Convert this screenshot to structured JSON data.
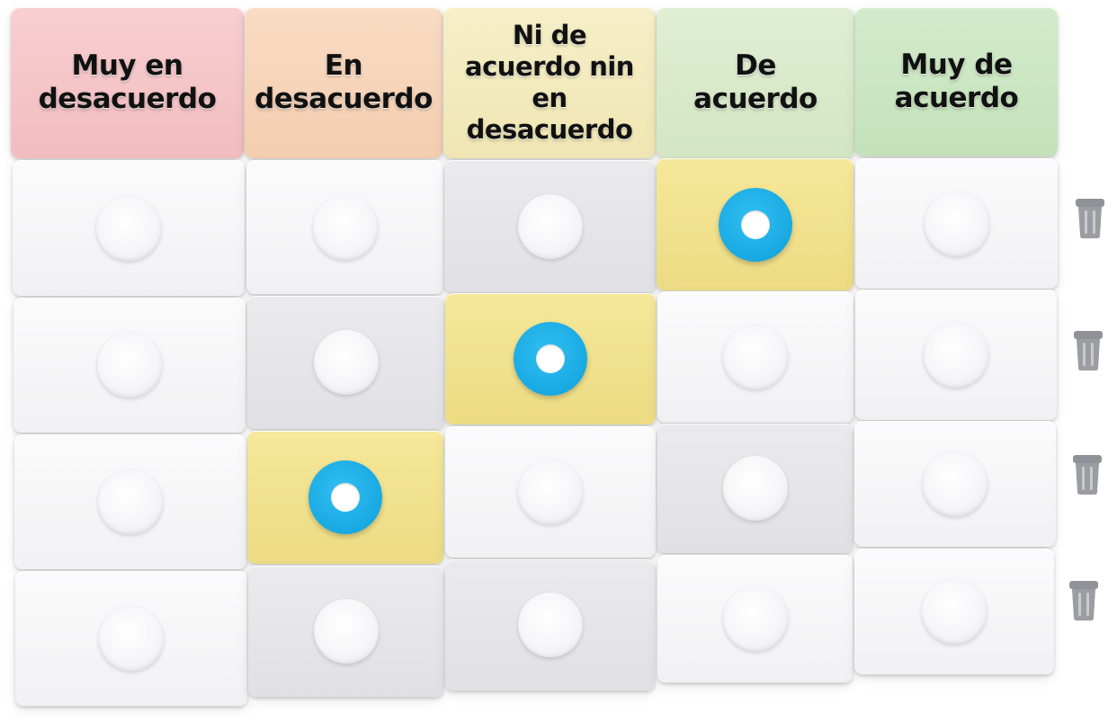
{
  "headers": [
    {
      "label": "Muy en\ndesacuerdo",
      "color": "#f5c4c6"
    },
    {
      "label": "En\ndesacuerdo",
      "color": "#f7d4b8"
    },
    {
      "label": "Ni de\nacuerdo nin\nen desacuerdo",
      "color": "#f4eab9"
    },
    {
      "label": "De\nacuerdo",
      "color": "#d8e9c8"
    },
    {
      "label": "Muy de\nacuerdo",
      "color": "#c9e6c1"
    }
  ],
  "rows": [
    {
      "selected_column": 3
    },
    {
      "selected_column": 2
    },
    {
      "selected_column": 1
    },
    {
      "selected_column": null
    }
  ],
  "colors": {
    "selected_cell": "#f2e28e",
    "radio_accent": "#1aa8e0",
    "trash_icon": "#8c8f94"
  },
  "icons": {
    "row_action": "trash-icon",
    "empty_option": "radio-knob-icon",
    "selected_option": "radio-selected-icon"
  }
}
